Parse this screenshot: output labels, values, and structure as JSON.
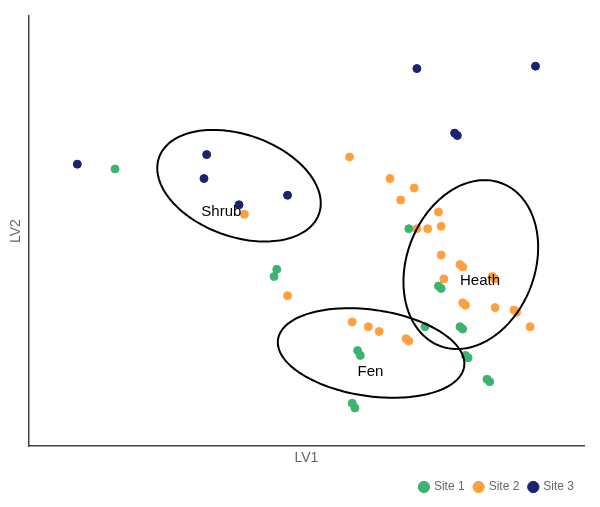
{
  "chart_data": {
    "type": "scatter",
    "xlabel": "LV1",
    "ylabel": "LV2",
    "xlim": [
      -5.5,
      4.8
    ],
    "ylim": [
      -4.0,
      5.0
    ],
    "tick_labels": false,
    "grid": false,
    "legend": "lower right",
    "series": [
      {
        "name": "Site 1",
        "color": "#3CB371",
        "marker": "circle",
        "values": [
          [
            -3.9,
            1.8
          ],
          [
            -0.9,
            -0.3
          ],
          [
            -0.95,
            -0.45
          ],
          [
            1.55,
            0.55
          ],
          [
            2.1,
            -0.65
          ],
          [
            2.15,
            -0.7
          ],
          [
            2.5,
            -1.5
          ],
          [
            2.55,
            -1.55
          ],
          [
            2.6,
            -2.1
          ],
          [
            2.65,
            -2.15
          ],
          [
            3.0,
            -2.6
          ],
          [
            3.05,
            -2.65
          ],
          [
            1.85,
            -1.5
          ],
          [
            0.6,
            -2.0
          ],
          [
            0.65,
            -2.1
          ],
          [
            0.5,
            -3.1
          ],
          [
            0.55,
            -3.2
          ]
        ]
      },
      {
        "name": "Site 2",
        "color": "#FFA040",
        "marker": "circle",
        "values": [
          [
            -1.5,
            0.85
          ],
          [
            0.45,
            2.05
          ],
          [
            1.2,
            1.6
          ],
          [
            1.4,
            1.15
          ],
          [
            1.65,
            1.4
          ],
          [
            1.7,
            0.55
          ],
          [
            1.9,
            0.55
          ],
          [
            2.1,
            0.9
          ],
          [
            2.15,
            0.6
          ],
          [
            2.15,
            0.0
          ],
          [
            2.2,
            -0.5
          ],
          [
            2.5,
            -0.2
          ],
          [
            2.55,
            -0.25
          ],
          [
            2.55,
            -1.0
          ],
          [
            2.6,
            -1.05
          ],
          [
            3.1,
            -0.45
          ],
          [
            3.15,
            -0.5
          ],
          [
            3.15,
            -1.1
          ],
          [
            3.5,
            -1.15
          ],
          [
            3.55,
            -1.2
          ],
          [
            3.8,
            -1.5
          ],
          [
            -0.7,
            -0.85
          ],
          [
            0.5,
            -1.4
          ],
          [
            0.8,
            -1.5
          ],
          [
            1.0,
            -1.6
          ],
          [
            1.5,
            -1.75
          ],
          [
            1.55,
            -1.8
          ]
        ]
      },
      {
        "name": "Site 3",
        "color": "#1C2272",
        "marker": "circle",
        "values": [
          [
            -4.6,
            1.9
          ],
          [
            -2.2,
            2.1
          ],
          [
            -2.25,
            1.6
          ],
          [
            -1.6,
            1.05
          ],
          [
            -0.7,
            1.25
          ],
          [
            1.7,
            3.9
          ],
          [
            2.4,
            2.55
          ],
          [
            2.45,
            2.5
          ],
          [
            3.9,
            3.95
          ]
        ]
      }
    ],
    "ellipses": [
      {
        "cx": -1.6,
        "cy": 1.45,
        "width": 3.2,
        "height": 2.1,
        "angle": -25
      },
      {
        "cx": 0.85,
        "cy": -2.05,
        "width": 3.5,
        "height": 1.8,
        "angle": -10
      },
      {
        "cx": 2.7,
        "cy": -0.2,
        "width": 2.4,
        "height": 3.6,
        "angle": -15
      }
    ],
    "annotations": [
      {
        "x": -2.3,
        "y": 0.9,
        "text": "Shrub"
      },
      {
        "x": 0.6,
        "y": -2.45,
        "text": "Fen"
      },
      {
        "x": 2.5,
        "y": -0.55,
        "text": "Heath"
      }
    ]
  }
}
